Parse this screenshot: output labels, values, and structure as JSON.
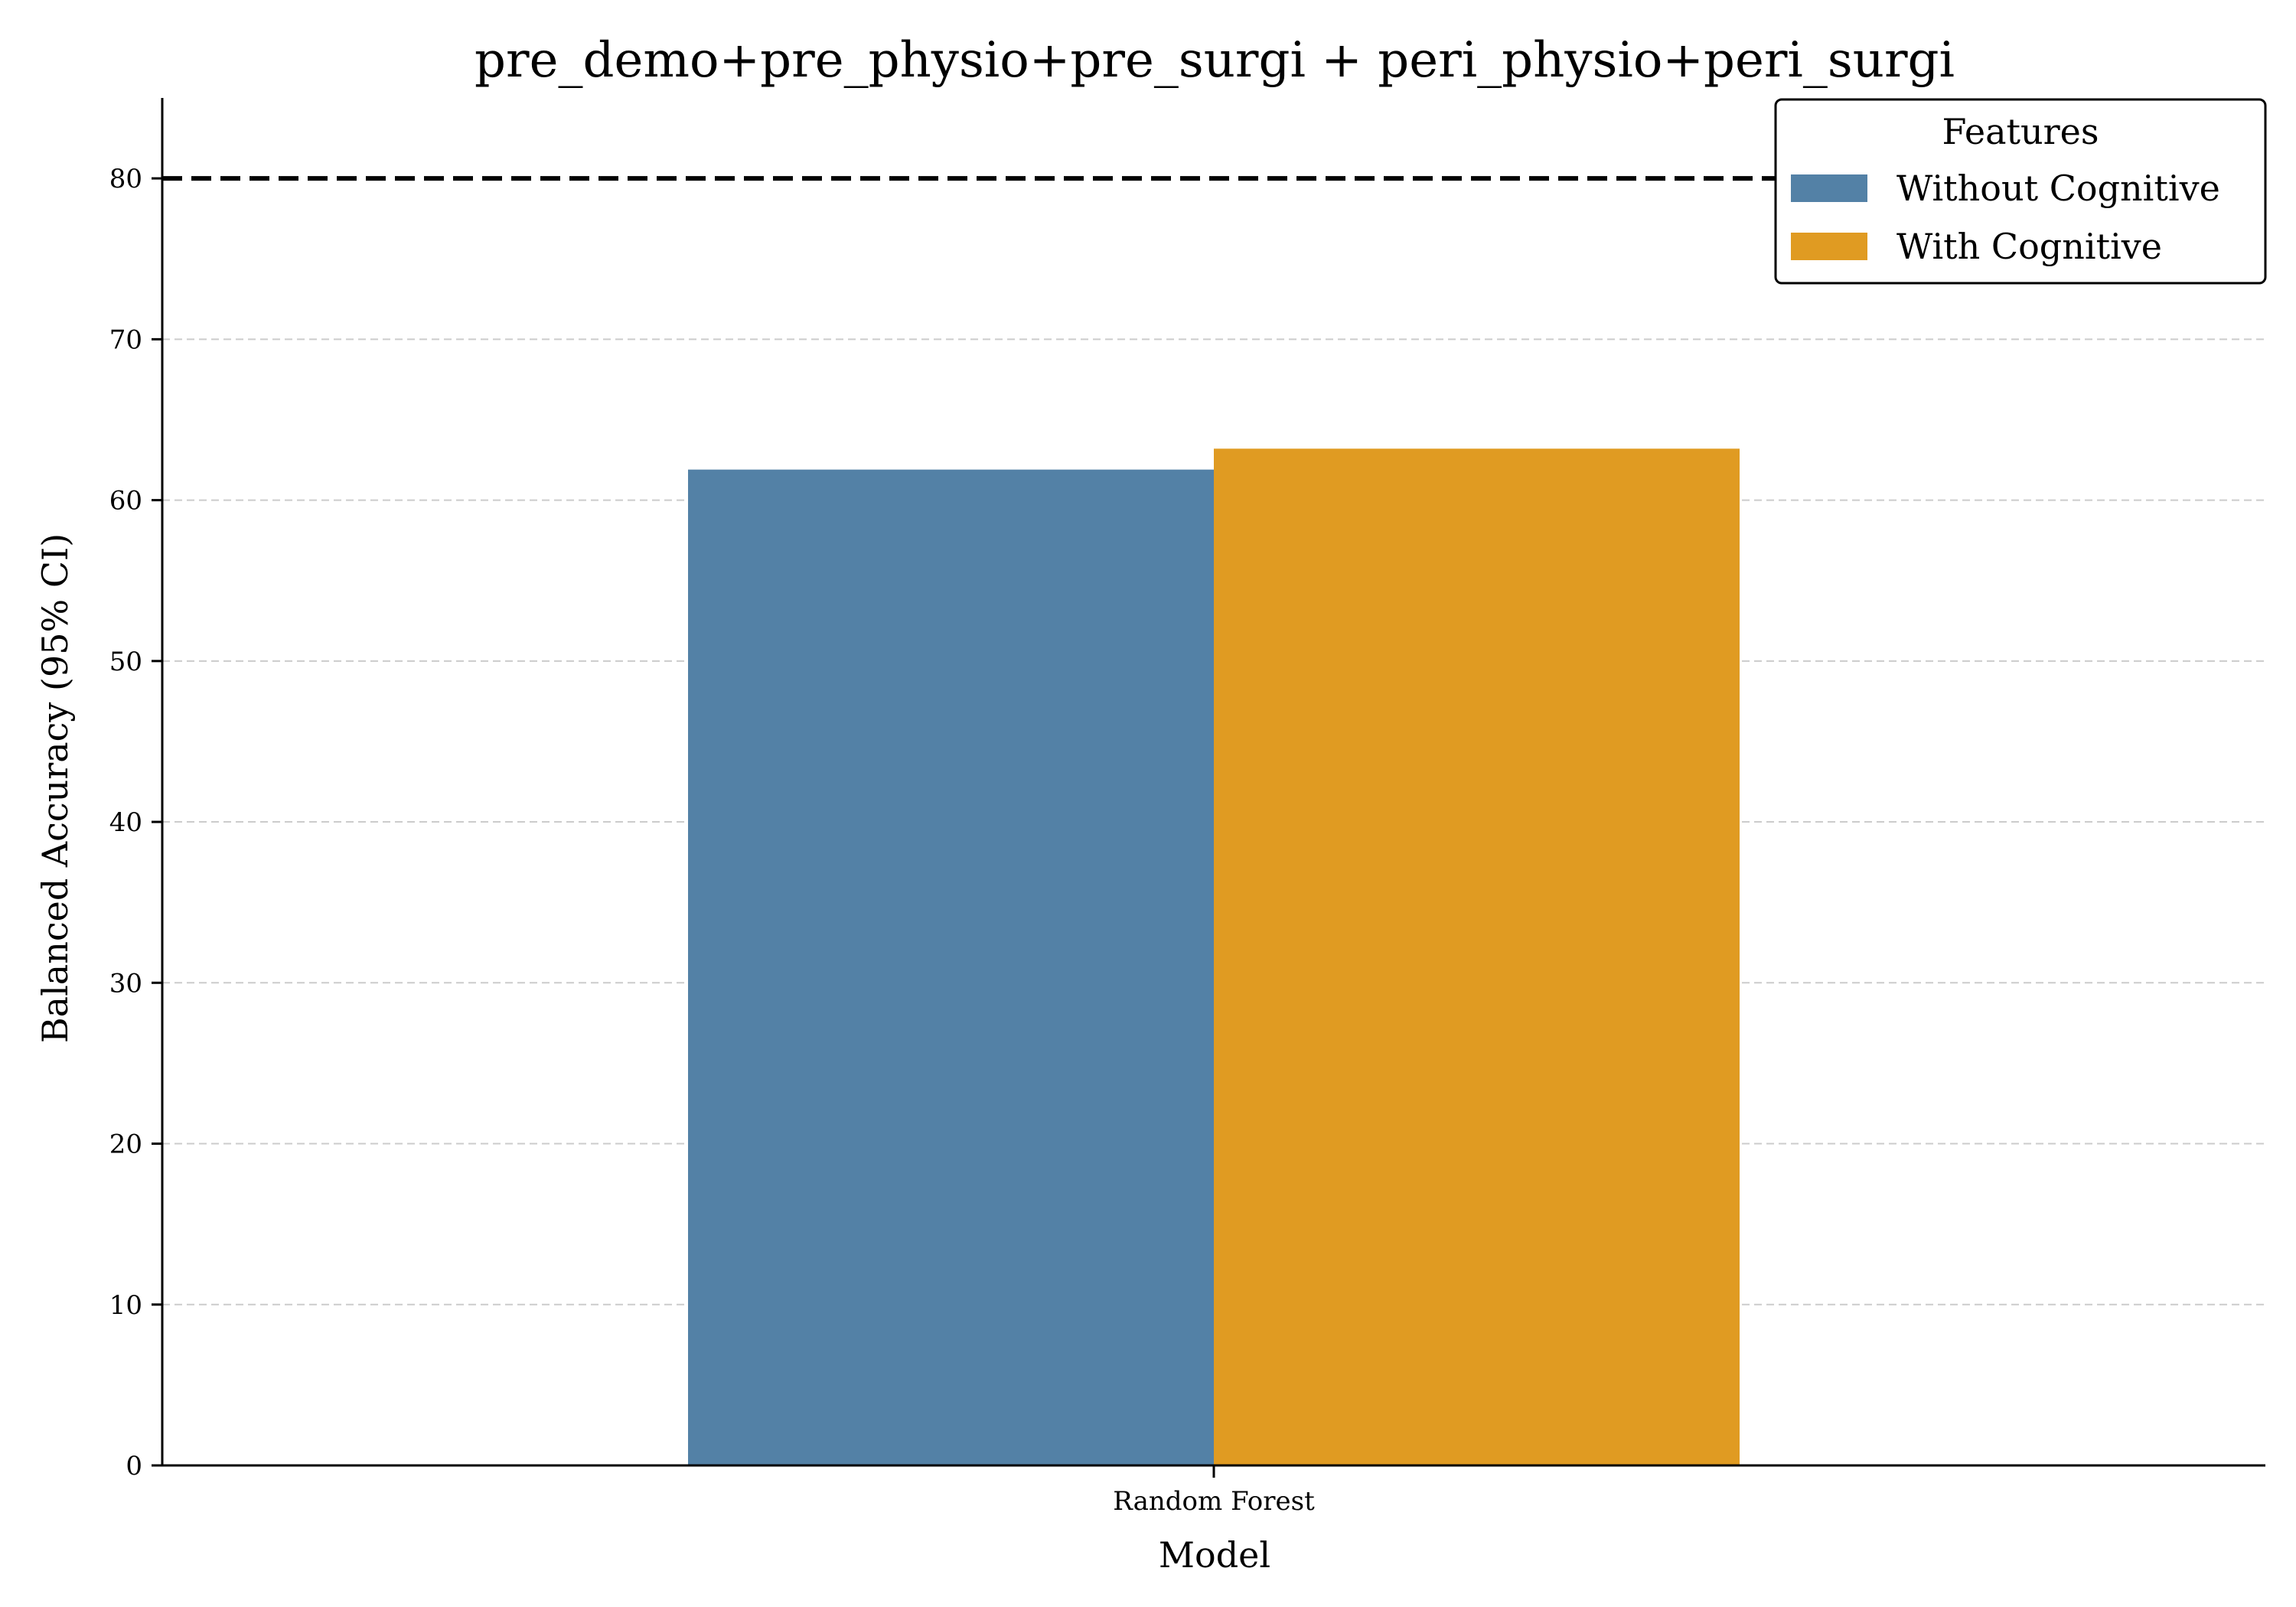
{
  "chart_data": {
    "type": "bar",
    "title": "pre_demo+pre_physio+pre_surgi + peri_physio+peri_surgi",
    "xlabel": "Model",
    "ylabel": "Balanced Accuracy (95% CI)",
    "categories": [
      "Random Forest"
    ],
    "series": [
      {
        "name": "Without Cognitive",
        "values": [
          61.9
        ],
        "color": "#5381a6"
      },
      {
        "name": "With Cognitive",
        "values": [
          63.2
        ],
        "color": "#e09b22"
      }
    ],
    "ylim": [
      0,
      85
    ],
    "yticks": [
      0,
      10,
      20,
      30,
      40,
      50,
      60,
      70,
      80
    ],
    "reference_line": {
      "value": 80,
      "style": "dashed",
      "color": "#000000"
    },
    "grid": {
      "axis": "y",
      "style": "dashed",
      "color": "#cccccc"
    },
    "legend": {
      "title": "Features",
      "position": "top-right"
    }
  }
}
